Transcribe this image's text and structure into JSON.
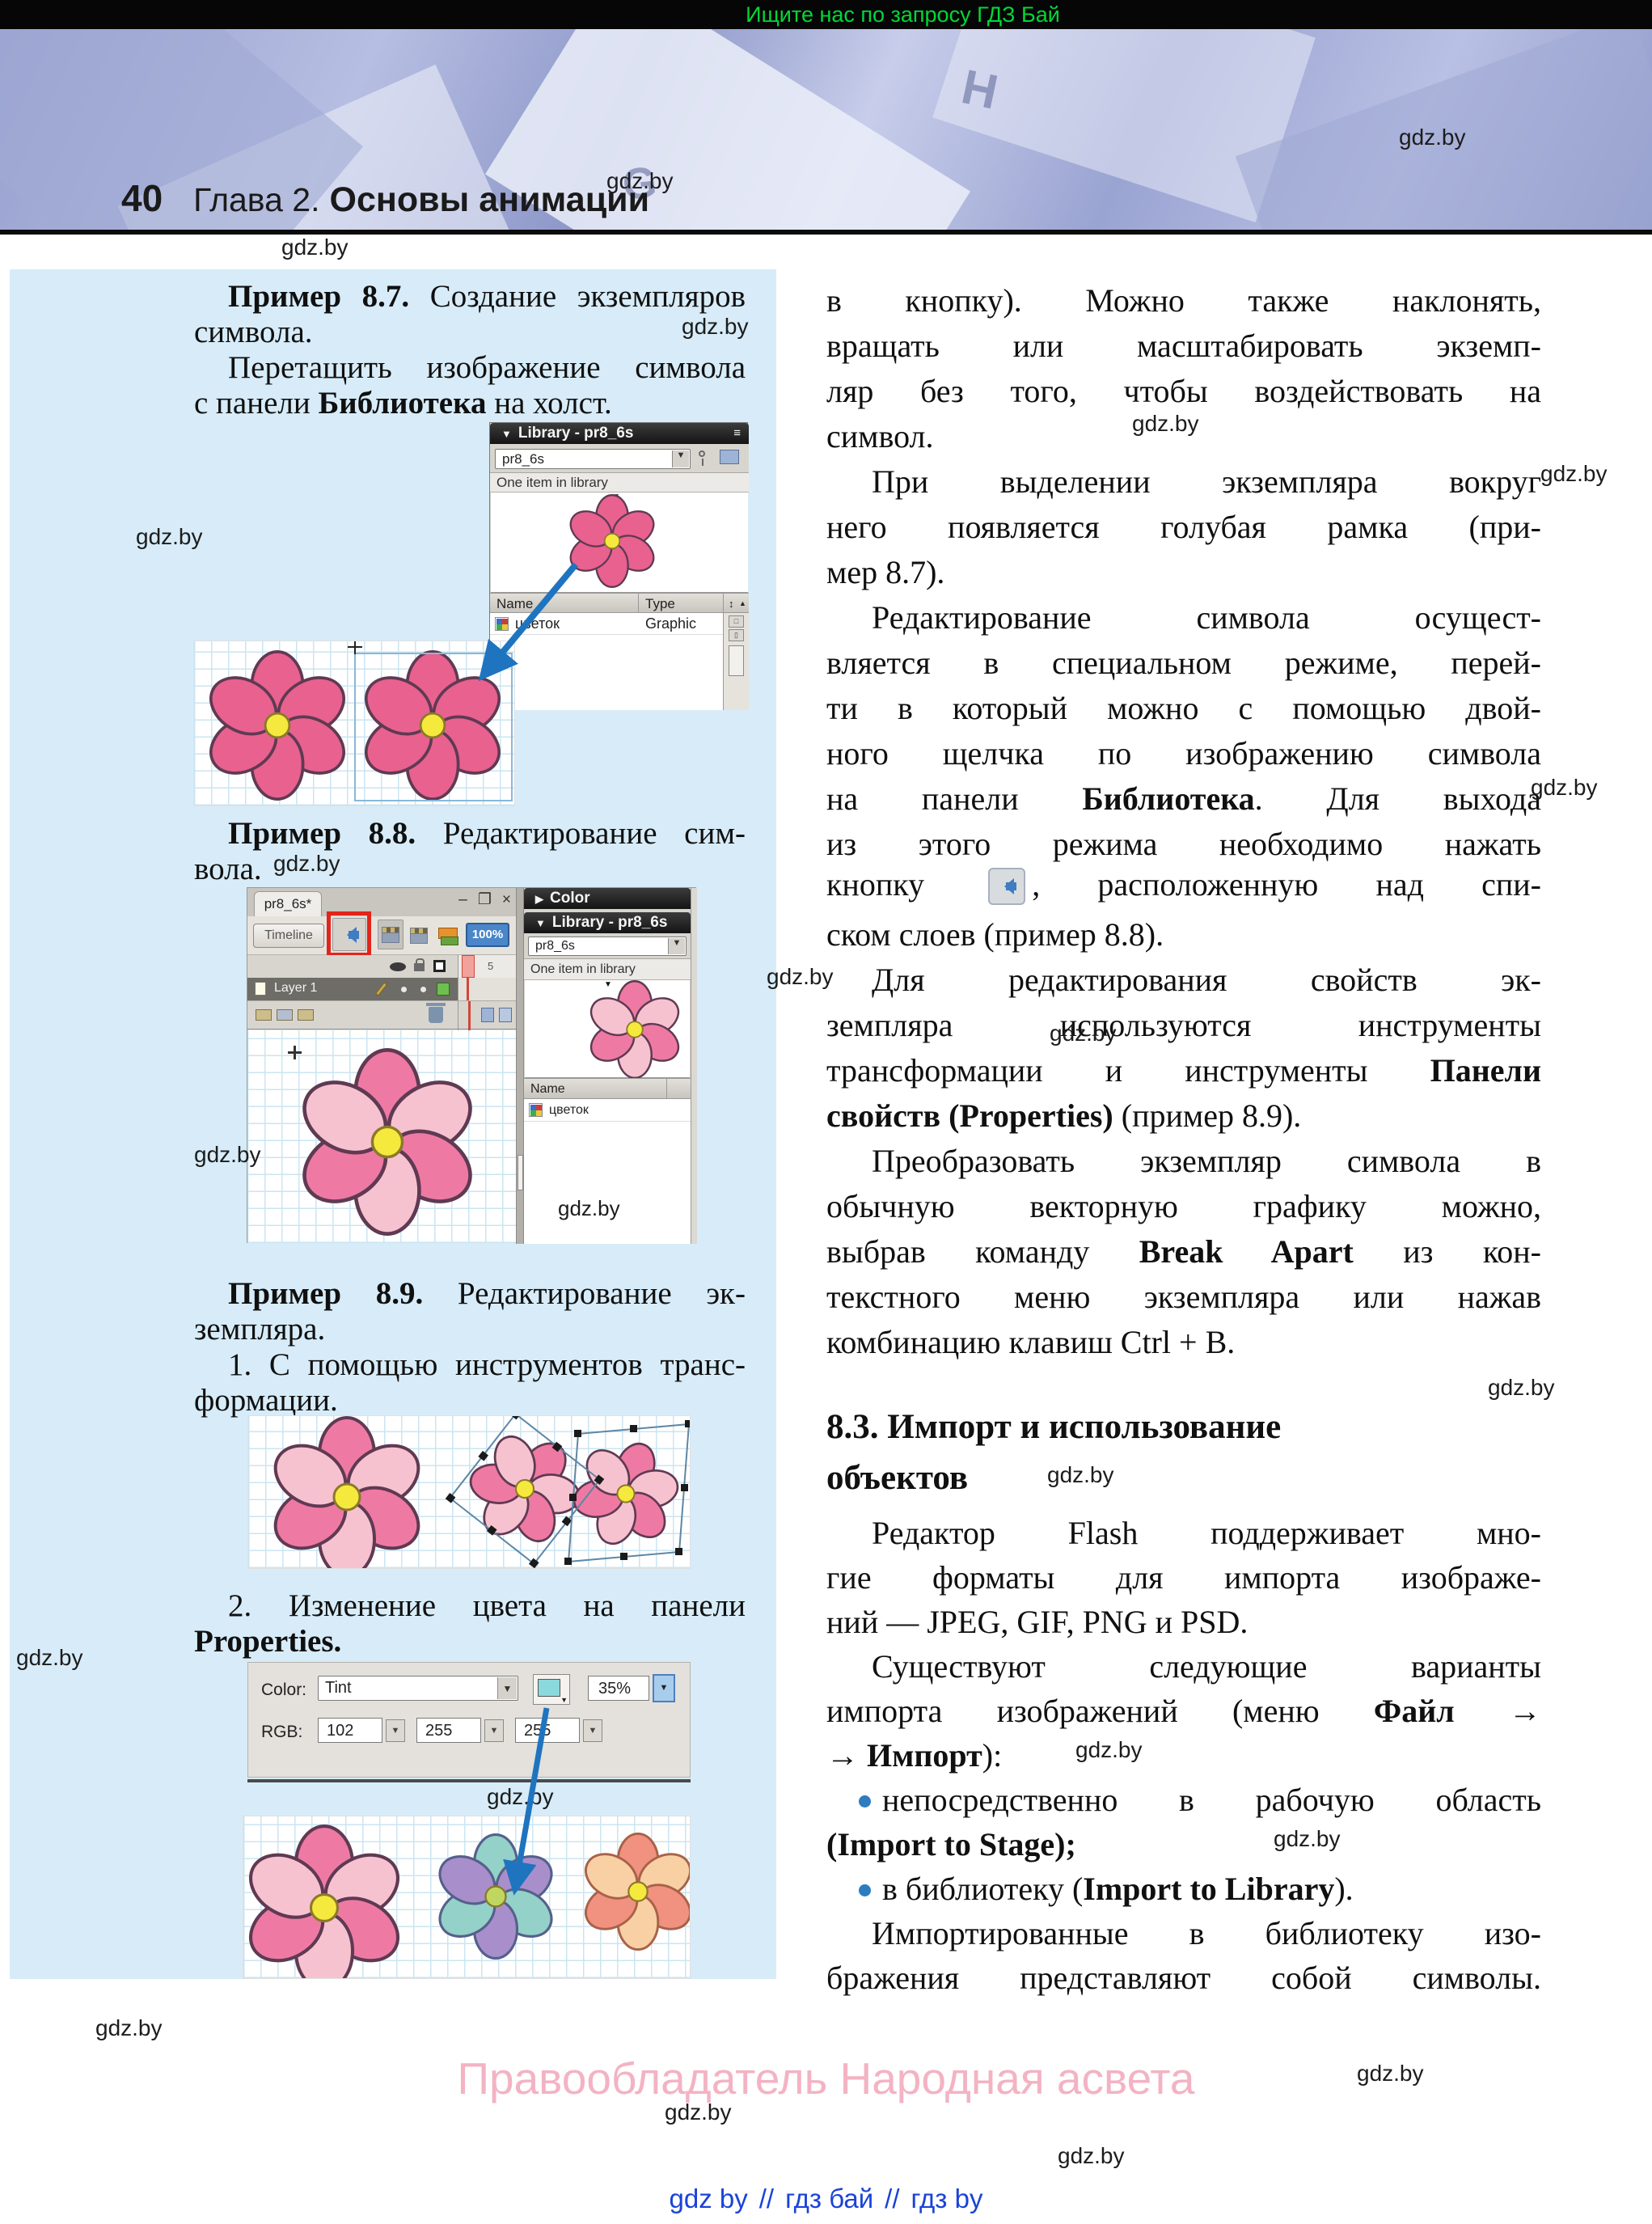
{
  "wm": "gdz.by",
  "banner": {
    "text": "Ищите нас по запросу ГДЗ Бай"
  },
  "header": {
    "page_number": "40",
    "chapter": "Глава 2.",
    "title": "Основы анимации"
  },
  "icons": {
    "collapse_down": "▼",
    "collapse_right": "▶",
    "dropdown_arrow": "▼",
    "sort": "↕",
    "sort_dir": "▲",
    "menu": "≡",
    "minimize": "–",
    "restore": "❐",
    "close": "×"
  },
  "library_panel": {
    "title": "Library - pr8_6s",
    "doc": "pr8_6s",
    "status": "One item in library",
    "col_name": "Name",
    "col_type": "Type",
    "item_name": "цветок",
    "item_type": "Graphic"
  },
  "editor": {
    "tab": "pr8_6s*",
    "timeline_btn": "Timeline",
    "zoom": "100%",
    "ruler_tick": "5",
    "layer": "Layer 1",
    "color_panel_title": "Color",
    "lib_title": "Library - pr8_6s",
    "lib_doc": "pr8_6s",
    "lib_status": "One item in library",
    "lib_col_name": "Name",
    "lib_item_name": "цветок"
  },
  "props": {
    "color_label": "Color:",
    "color_mode": "Tint",
    "percent": "35%",
    "rgb_label": "RGB:",
    "r": "102",
    "g": "255",
    "b": "255"
  },
  "left": {
    "p87_l1": [
      {
        "t": "Пример 8.7.",
        "b": true
      },
      {
        "t": " Создание экземпляров"
      }
    ],
    "p87_l2": [
      {
        "t": "символа."
      }
    ],
    "p87_l3": [
      {
        "t": "Перетащить изображение символа"
      }
    ],
    "p87_l4": [
      {
        "t": "с панели "
      },
      {
        "t": "Библиотека",
        "b": true
      },
      {
        "t": " на холст."
      }
    ],
    "p88_l1": [
      {
        "t": "Пример 8.8.",
        "b": true
      },
      {
        "t": " Редактирование сим-"
      }
    ],
    "p88_l2": [
      {
        "t": "вола."
      }
    ],
    "p89_l1": [
      {
        "t": "Пример 8.9.",
        "b": true
      },
      {
        "t": " Редактирование эк-"
      }
    ],
    "p89_l2": [
      {
        "t": "земпляра."
      }
    ],
    "p89_l3": [
      {
        "t": "1. С помощью инструментов транс-"
      }
    ],
    "p89_l4": [
      {
        "t": "формации."
      }
    ],
    "p89_l5": [
      {
        "t": "2. Изменение цвета на панели"
      }
    ],
    "p89_l6": [
      {
        "t": "Properties.",
        "b": true
      }
    ]
  },
  "right": {
    "heading1": "8.3. Импорт и использование",
    "heading2": "объектов",
    "lines": [
      {
        "seg": [
          {
            "t": "в кнопку). Можно также наклонять,"
          }
        ]
      },
      {
        "seg": [
          {
            "t": "вращать или масштабировать экземп-"
          }
        ]
      },
      {
        "seg": [
          {
            "t": "ляр без того, чтобы воздействовать на"
          }
        ]
      },
      {
        "seg": [
          {
            "t": "символ."
          }
        ]
      },
      {
        "seg": [
          {
            "t": "При выделении экземпляра вокруг"
          }
        ]
      },
      {
        "seg": [
          {
            "t": "него появляется голубая рамка (при-"
          }
        ]
      },
      {
        "seg": [
          {
            "t": "мер 8.7)."
          }
        ]
      },
      {
        "seg": [
          {
            "t": "Редактирование символа осущест-"
          }
        ]
      },
      {
        "seg": [
          {
            "t": "вляется в специальном режиме, перей-"
          }
        ]
      },
      {
        "seg": [
          {
            "t": "ти в который можно с помощью двой-"
          }
        ]
      },
      {
        "seg": [
          {
            "t": "ного щелчка по изображению символа"
          }
        ]
      },
      {
        "seg": [
          {
            "t": "на панели "
          },
          {
            "t": "Библиотека",
            "b": true
          },
          {
            "t": ". Для выхода"
          }
        ]
      },
      {
        "seg": [
          {
            "t": "из этого режима необходимо нажать"
          }
        ]
      },
      {
        "seg": [
          {
            "t": "кнопку "
          },
          {
            "t": ", расположенную над спи-"
          }
        ]
      },
      {
        "seg": [
          {
            "t": "ском слоев (пример 8.8)."
          }
        ]
      },
      {
        "seg": [
          {
            "t": "Для редактирования свойств эк-"
          }
        ]
      },
      {
        "seg": [
          {
            "t": "земпляра используются инструменты"
          }
        ]
      },
      {
        "seg": [
          {
            "t": "трансформации и инструменты "
          },
          {
            "t": "Панели",
            "b": true
          }
        ]
      },
      {
        "seg": [
          {
            "t": "свойств (Properties)",
            "b": true
          },
          {
            "t": " (пример 8.9)."
          }
        ]
      },
      {
        "seg": [
          {
            "t": "Преобразовать экземпляр символа в"
          }
        ]
      },
      {
        "seg": [
          {
            "t": "обычную векторную графику можно,"
          }
        ]
      },
      {
        "seg": [
          {
            "t": "выбрав команду "
          },
          {
            "t": "Break Apart",
            "b": true
          },
          {
            "t": " из кон-"
          }
        ]
      },
      {
        "seg": [
          {
            "t": "текстного меню экземпляра или нажав"
          }
        ]
      },
      {
        "seg": [
          {
            "t": "комбинацию клавиш Ctrl + B."
          }
        ]
      },
      {
        "seg": [
          {
            "t": "Редактор Flash поддерживает мно-"
          }
        ]
      },
      {
        "seg": [
          {
            "t": "гие форматы для импорта изображе-"
          }
        ]
      },
      {
        "seg": [
          {
            "t": "ний — JPEG, GIF, PNG и PSD."
          }
        ]
      },
      {
        "seg": [
          {
            "t": "Существуют следующие варианты"
          }
        ]
      },
      {
        "seg": [
          {
            "t": "импорта изображений (меню "
          },
          {
            "t": "Файл",
            "b": true
          },
          {
            "t": " →"
          }
        ]
      },
      {
        "seg": [
          {
            "t": "→ "
          },
          {
            "t": "Импорт",
            "b": true
          },
          {
            "t": "):"
          }
        ]
      },
      {
        "seg": [
          {
            "t": "непосредственно в рабочую область"
          }
        ]
      },
      {
        "seg": [
          {
            "t": "(Import to Stage);",
            "b": true
          }
        ]
      },
      {
        "seg": [
          {
            "t": "в библиотеку ("
          },
          {
            "t": "Import to Library",
            "b": true
          },
          {
            "t": ")."
          }
        ]
      },
      {
        "seg": [
          {
            "t": "Импортированные в библиотеку изо-"
          }
        ]
      },
      {
        "seg": [
          {
            "t": "бражения представляют собой символы."
          }
        ]
      }
    ]
  },
  "footer": {
    "copyright": "Правообладатель Народная асвета",
    "link1": "gdz by",
    "sep": "//",
    "link2": "гдз бай",
    "link3": "гдз by"
  },
  "palette": {
    "petal_dark": "#e8618f",
    "petal_mid": "#ee7aa4",
    "petal_light": "#f7c2d0",
    "petal_teal": "#93d1c9",
    "petal_purple": "#a88fcb",
    "petal_salmon": "#f19180",
    "petal_peach": "#f8d0a4",
    "center_yellow": "#f6e93d",
    "center_green": "#bfd75f",
    "stroke_maroon": "#5f3a52",
    "stroke_violet": "#55608a",
    "stroke_brown": "#a86248",
    "accent_arrow": "#1f74c0",
    "annotation_red": "#e1251b",
    "selection_blue": "#8ab8d8",
    "swatch_cyan": "#8bd9dd",
    "link_blue": "#1a43d8"
  }
}
